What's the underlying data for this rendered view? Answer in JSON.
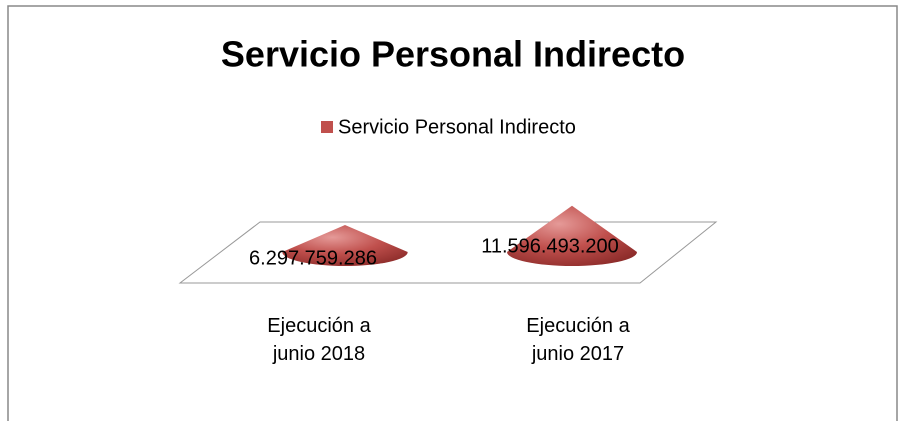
{
  "chart_data": {
    "type": "cone",
    "title": "Servicio Personal Indirecto",
    "categories": [
      "Ejecución a junio 2018",
      "Ejecución a junio 2017"
    ],
    "series": [
      {
        "name": "Servicio Personal Indirecto",
        "color": "#c0504d",
        "values": [
          6297759286,
          11596493200
        ],
        "value_labels": [
          "6.297.759.286",
          "11.596.493.200"
        ]
      }
    ],
    "legend": "top"
  }
}
